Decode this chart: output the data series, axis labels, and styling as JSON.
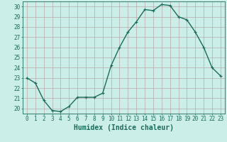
{
  "x": [
    0,
    1,
    2,
    3,
    4,
    5,
    6,
    7,
    8,
    9,
    10,
    11,
    12,
    13,
    14,
    15,
    16,
    17,
    18,
    19,
    20,
    21,
    22,
    23
  ],
  "y": [
    23.0,
    22.5,
    20.8,
    19.8,
    19.7,
    20.2,
    21.1,
    21.1,
    21.1,
    21.5,
    24.2,
    26.0,
    27.5,
    28.5,
    29.7,
    29.6,
    30.2,
    30.1,
    29.0,
    28.7,
    27.5,
    26.0,
    24.0,
    23.2
  ],
  "line_color": "#1a6b5a",
  "marker": "+",
  "marker_size": 3,
  "bg_color": "#cceee8",
  "grid_color": "#b8a8a8",
  "xlabel": "Humidex (Indice chaleur)",
  "ylim_min": 19.5,
  "ylim_max": 30.5,
  "xlim_min": -0.5,
  "xlim_max": 23.5,
  "yticks": [
    20,
    21,
    22,
    23,
    24,
    25,
    26,
    27,
    28,
    29,
    30
  ],
  "xticks": [
    0,
    1,
    2,
    3,
    4,
    5,
    6,
    7,
    8,
    9,
    10,
    11,
    12,
    13,
    14,
    15,
    16,
    17,
    18,
    19,
    20,
    21,
    22,
    23
  ],
  "tick_color": "#1a6b5a",
  "axis_color": "#1a6b5a",
  "label_fontsize": 7,
  "tick_fontsize": 5.5,
  "line_width": 1.0,
  "marker_edge_width": 0.8
}
